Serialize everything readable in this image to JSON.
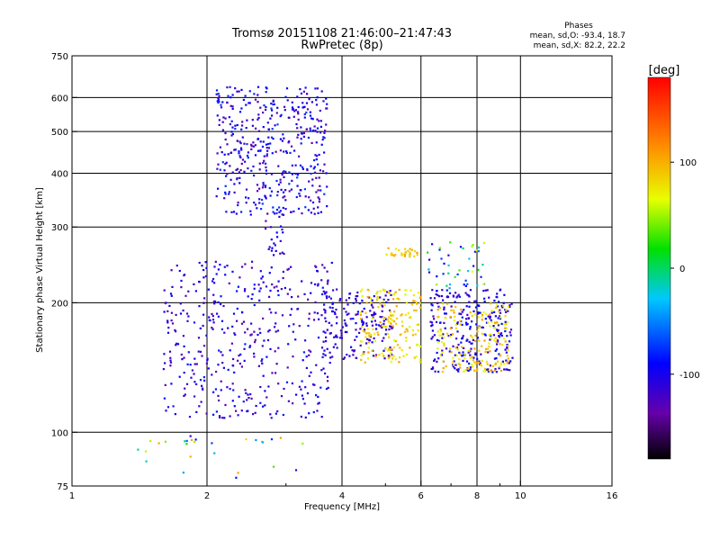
{
  "chart_data": {
    "type": "scatter",
    "title": "Tromsø 20151108 21:46:00–21:47:43",
    "subtitle": "RwPretec (8p)",
    "xlabel": "Frequency [MHz]",
    "ylabel": "Stationary phase Virtual Height [km]",
    "x_scale": "log",
    "y_scale": "log",
    "xlim": [
      1,
      16
    ],
    "ylim": [
      75,
      750
    ],
    "x_ticks": [
      1,
      2,
      4,
      6,
      8,
      10,
      16
    ],
    "y_ticks": [
      75,
      100,
      200,
      300,
      400,
      500,
      600,
      750
    ],
    "x_grid": [
      2,
      4,
      6,
      8,
      10
    ],
    "y_grid": [
      100,
      200,
      300,
      400,
      500,
      600
    ],
    "grid": true,
    "stats": {
      "heading": "Phases",
      "line_o": "mean, sd,O: -93.4, 18.7",
      "line_x": "mean, sd,X:  82.2, 22.2"
    },
    "colorbar": {
      "label": "[deg]",
      "range": [
        -180,
        180
      ],
      "ticks": [
        {
          "value": 100,
          "label": "100"
        },
        {
          "value": 0,
          "label": "0"
        },
        {
          "value": -100,
          "label": "-100"
        }
      ]
    },
    "clusters": [
      {
        "name": "f2-upper",
        "x": [
          2.1,
          3.7
        ],
        "y": [
          320,
          640
        ],
        "n": 440,
        "phase": [
          -140,
          -70
        ]
      },
      {
        "name": "f2-tail",
        "x": [
          2.7,
          3.0
        ],
        "y": [
          255,
          320
        ],
        "n": 22,
        "phase": [
          -130,
          -90
        ]
      },
      {
        "name": "f-lower",
        "x": [
          1.6,
          3.8
        ],
        "y": [
          108,
          250
        ],
        "n": 420,
        "phase": [
          -140,
          -80
        ]
      },
      {
        "name": "mid-band",
        "x": [
          3.6,
          5.2
        ],
        "y": [
          148,
          215
        ],
        "n": 180,
        "phase": [
          -130,
          -90
        ]
      },
      {
        "name": "mid-band-x",
        "x": [
          4.4,
          6.0
        ],
        "y": [
          145,
          215
        ],
        "n": 170,
        "phase": [
          60,
          110
        ]
      },
      {
        "name": "upper-x-5mhz",
        "x": [
          5.0,
          6.0
        ],
        "y": [
          255,
          268
        ],
        "n": 30,
        "phase": [
          70,
          110
        ]
      },
      {
        "name": "right-band",
        "x": [
          6.3,
          9.6
        ],
        "y": [
          138,
          215
        ],
        "n": 260,
        "phase": [
          -130,
          -80
        ]
      },
      {
        "name": "right-band-x",
        "x": [
          6.5,
          9.4
        ],
        "y": [
          138,
          200
        ],
        "n": 170,
        "phase": [
          60,
          110
        ]
      },
      {
        "name": "right-high",
        "x": [
          6.2,
          8.3
        ],
        "y": [
          215,
          280
        ],
        "n": 45,
        "phase": [
          -120,
          90
        ]
      },
      {
        "name": "low-sparse",
        "x": [
          1.4,
          3.3
        ],
        "y": [
          78,
          98
        ],
        "n": 28,
        "phase": [
          -120,
          110
        ]
      }
    ]
  }
}
